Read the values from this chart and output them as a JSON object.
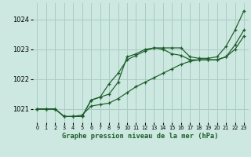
{
  "title": "Graphe pression niveau de la mer (hPa)",
  "bg_color": "#cce8e0",
  "grid_color": "#aaccc4",
  "line_color": "#1a5c28",
  "xlim": [
    -0.5,
    23.5
  ],
  "ylim": [
    1020.55,
    1024.55
  ],
  "yticks": [
    1021,
    1022,
    1023,
    1024
  ],
  "xticks": [
    0,
    1,
    2,
    3,
    4,
    5,
    6,
    7,
    8,
    9,
    10,
    11,
    12,
    13,
    14,
    15,
    16,
    17,
    18,
    19,
    20,
    21,
    22,
    23
  ],
  "line1_x": [
    0,
    1,
    2,
    3,
    4,
    5,
    6,
    7,
    8,
    9,
    10,
    11,
    12,
    13,
    14,
    15,
    16,
    17,
    18,
    19,
    20,
    21,
    22,
    23
  ],
  "line1_y": [
    1021.0,
    1021.0,
    1021.0,
    1020.75,
    1020.75,
    1020.75,
    1021.3,
    1021.4,
    1021.5,
    1021.9,
    1022.75,
    1022.85,
    1023.0,
    1023.05,
    1023.05,
    1023.05,
    1023.05,
    1022.75,
    1022.7,
    1022.7,
    1022.75,
    1023.1,
    1023.65,
    1024.3
  ],
  "line2_x": [
    0,
    1,
    2,
    3,
    4,
    5,
    6,
    7,
    8,
    9,
    10,
    11,
    12,
    13,
    14,
    15,
    16,
    17,
    18,
    19,
    20,
    21,
    22,
    23
  ],
  "line2_y": [
    1021.0,
    1021.0,
    1021.0,
    1020.75,
    1020.75,
    1020.75,
    1021.3,
    1021.4,
    1021.85,
    1022.2,
    1022.65,
    1022.8,
    1022.95,
    1023.05,
    1023.0,
    1022.85,
    1022.8,
    1022.65,
    1022.65,
    1022.65,
    1022.65,
    1022.75,
    1023.15,
    1023.65
  ],
  "line3_x": [
    0,
    1,
    2,
    3,
    4,
    5,
    6,
    7,
    8,
    9,
    10,
    11,
    12,
    13,
    14,
    15,
    16,
    17,
    18,
    19,
    20,
    21,
    22,
    23
  ],
  "line3_y": [
    1021.0,
    1021.0,
    1021.0,
    1020.75,
    1020.75,
    1020.8,
    1021.1,
    1021.15,
    1021.2,
    1021.35,
    1021.55,
    1021.75,
    1021.9,
    1022.05,
    1022.2,
    1022.35,
    1022.5,
    1022.6,
    1022.65,
    1022.65,
    1022.65,
    1022.75,
    1023.0,
    1023.45
  ]
}
